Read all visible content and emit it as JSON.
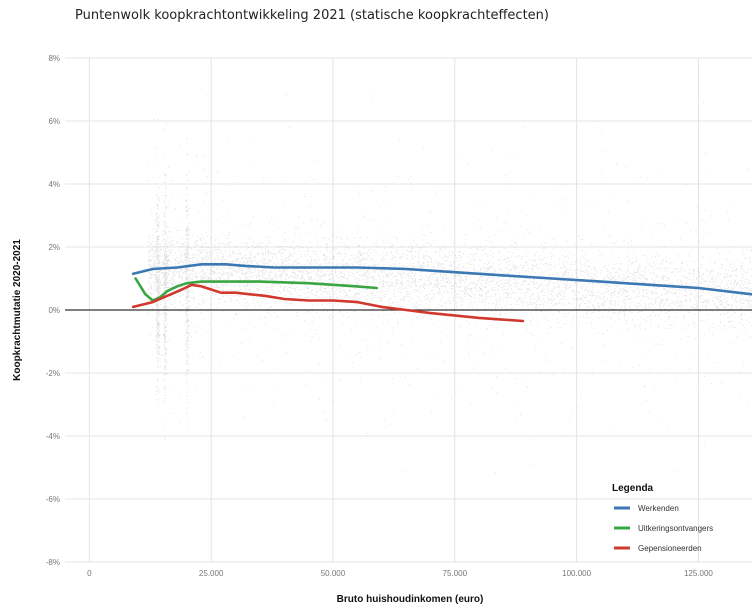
{
  "title": "Puntenwolk koopkrachtontwikkeling 2021 (statische koopkrachteffecten)",
  "colors": {
    "background": "#ffffff",
    "grid": "#e4e4e4",
    "zero_line": "#333333",
    "cloud": "#9a9a9a"
  },
  "chart_data": {
    "type": "line",
    "title": "Puntenwolk koopkrachtontwikkeling 2021 (statische koopkrachteffecten)",
    "xlabel": "Bruto huishoudinkomen (euro)",
    "ylabel": "Koopkrachtmutatie 2020-2021",
    "xlim": [
      -5000,
      136000
    ],
    "ylim": [
      -8,
      8
    ],
    "x_ticks": [
      0,
      25000,
      50000,
      75000,
      100000,
      125000
    ],
    "x_tick_labels": [
      "0",
      "25.000",
      "50.000",
      "75.000",
      "100.000",
      "125.000"
    ],
    "y_ticks": [
      8,
      6,
      4,
      2,
      0,
      -2,
      -4,
      -6,
      -8
    ],
    "y_tick_labels": [
      "8%",
      "6%",
      "4%",
      "2%",
      "0%",
      "-2%",
      "-4%",
      "-6%",
      "-8%"
    ],
    "grid": true,
    "legend": {
      "title": "Legenda",
      "position": "bottom-right"
    },
    "series": [
      {
        "name": "Werkenden",
        "color": "#3b78b4",
        "x": [
          9000,
          13000,
          18000,
          23000,
          28000,
          32000,
          38000,
          45000,
          55000,
          65000,
          75000,
          85000,
          95000,
          105000,
          115000,
          125000,
          136000
        ],
        "y": [
          1.15,
          1.3,
          1.35,
          1.45,
          1.45,
          1.4,
          1.35,
          1.35,
          1.35,
          1.3,
          1.2,
          1.1,
          1.0,
          0.9,
          0.8,
          0.7,
          0.5
        ]
      },
      {
        "name": "Uitkeringsontvangers",
        "color": "#3aa543",
        "x": [
          9500,
          11500,
          13000,
          14500,
          16000,
          18000,
          20000,
          23000,
          28000,
          35000,
          45000,
          55000,
          59000
        ],
        "y": [
          1.0,
          0.5,
          0.3,
          0.4,
          0.6,
          0.75,
          0.85,
          0.9,
          0.9,
          0.9,
          0.85,
          0.75,
          0.7
        ]
      },
      {
        "name": "Gepensioneerden",
        "color": "#d1382e",
        "x": [
          9000,
          13000,
          16000,
          19000,
          21000,
          23000,
          25000,
          27000,
          30000,
          33000,
          36000,
          40000,
          45000,
          50000,
          55000,
          60000,
          65000,
          70000,
          80000,
          89000
        ],
        "y": [
          0.1,
          0.25,
          0.45,
          0.65,
          0.8,
          0.75,
          0.65,
          0.55,
          0.55,
          0.5,
          0.45,
          0.35,
          0.3,
          0.3,
          0.25,
          0.1,
          0.0,
          -0.1,
          -0.25,
          -0.35
        ]
      }
    ]
  }
}
